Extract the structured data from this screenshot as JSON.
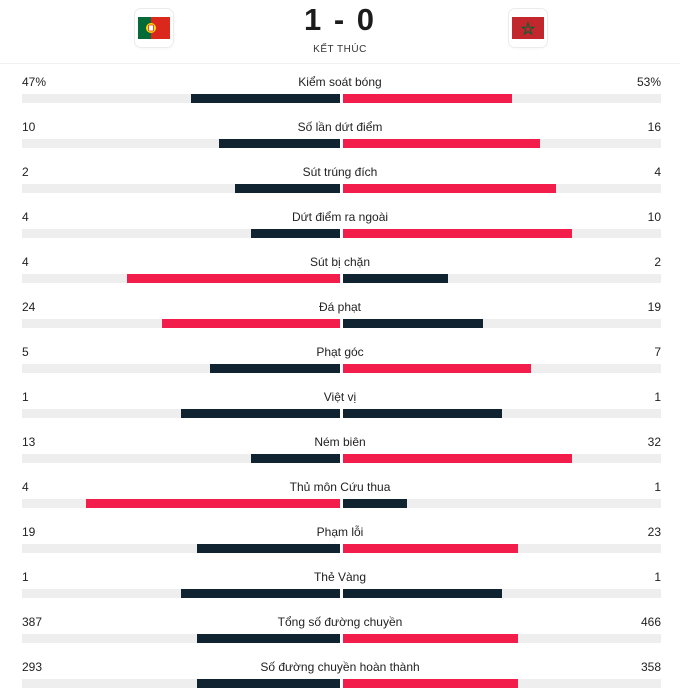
{
  "match": {
    "score": "1 - 0",
    "status": "KẾT THÚC",
    "home_flag": "portugal-flag",
    "away_flag": "morocco-flag"
  },
  "colors": {
    "leader": "#f21d4b",
    "trailer": "#0f2331",
    "track": "#eeeeee"
  },
  "stats": [
    {
      "label": "Kiểm soát bóng",
      "home": "47%",
      "away": "53%",
      "home_share": 0.47,
      "away_share": 0.53
    },
    {
      "label": "Số lần dứt điểm",
      "home": "10",
      "away": "16",
      "home_share": 0.38,
      "away_share": 0.62
    },
    {
      "label": "Sút trúng đích",
      "home": "2",
      "away": "4",
      "home_share": 0.33,
      "away_share": 0.67
    },
    {
      "label": "Dứt điểm ra ngoài",
      "home": "4",
      "away": "10",
      "home_share": 0.28,
      "away_share": 0.72
    },
    {
      "label": "Sút bị chặn",
      "home": "4",
      "away": "2",
      "home_share": 0.67,
      "away_share": 0.33
    },
    {
      "label": "Đá phạt",
      "home": "24",
      "away": "19",
      "home_share": 0.56,
      "away_share": 0.44
    },
    {
      "label": "Phạt góc",
      "home": "5",
      "away": "7",
      "home_share": 0.41,
      "away_share": 0.59
    },
    {
      "label": "Việt vị",
      "home": "1",
      "away": "1",
      "home_share": 0.5,
      "away_share": 0.5
    },
    {
      "label": "Ném biên",
      "home": "13",
      "away": "32",
      "home_share": 0.28,
      "away_share": 0.72
    },
    {
      "label": "Thủ môn Cứu thua",
      "home": "4",
      "away": "1",
      "home_share": 0.8,
      "away_share": 0.2
    },
    {
      "label": "Phạm lỗi",
      "home": "19",
      "away": "23",
      "home_share": 0.45,
      "away_share": 0.55
    },
    {
      "label": "Thẻ Vàng",
      "home": "1",
      "away": "1",
      "home_share": 0.5,
      "away_share": 0.5
    },
    {
      "label": "Tổng số đường chuyền",
      "home": "387",
      "away": "466",
      "home_share": 0.45,
      "away_share": 0.55
    },
    {
      "label": "Số đường chuyền hoàn thành",
      "home": "293",
      "away": "358",
      "home_share": 0.45,
      "away_share": 0.55
    }
  ]
}
